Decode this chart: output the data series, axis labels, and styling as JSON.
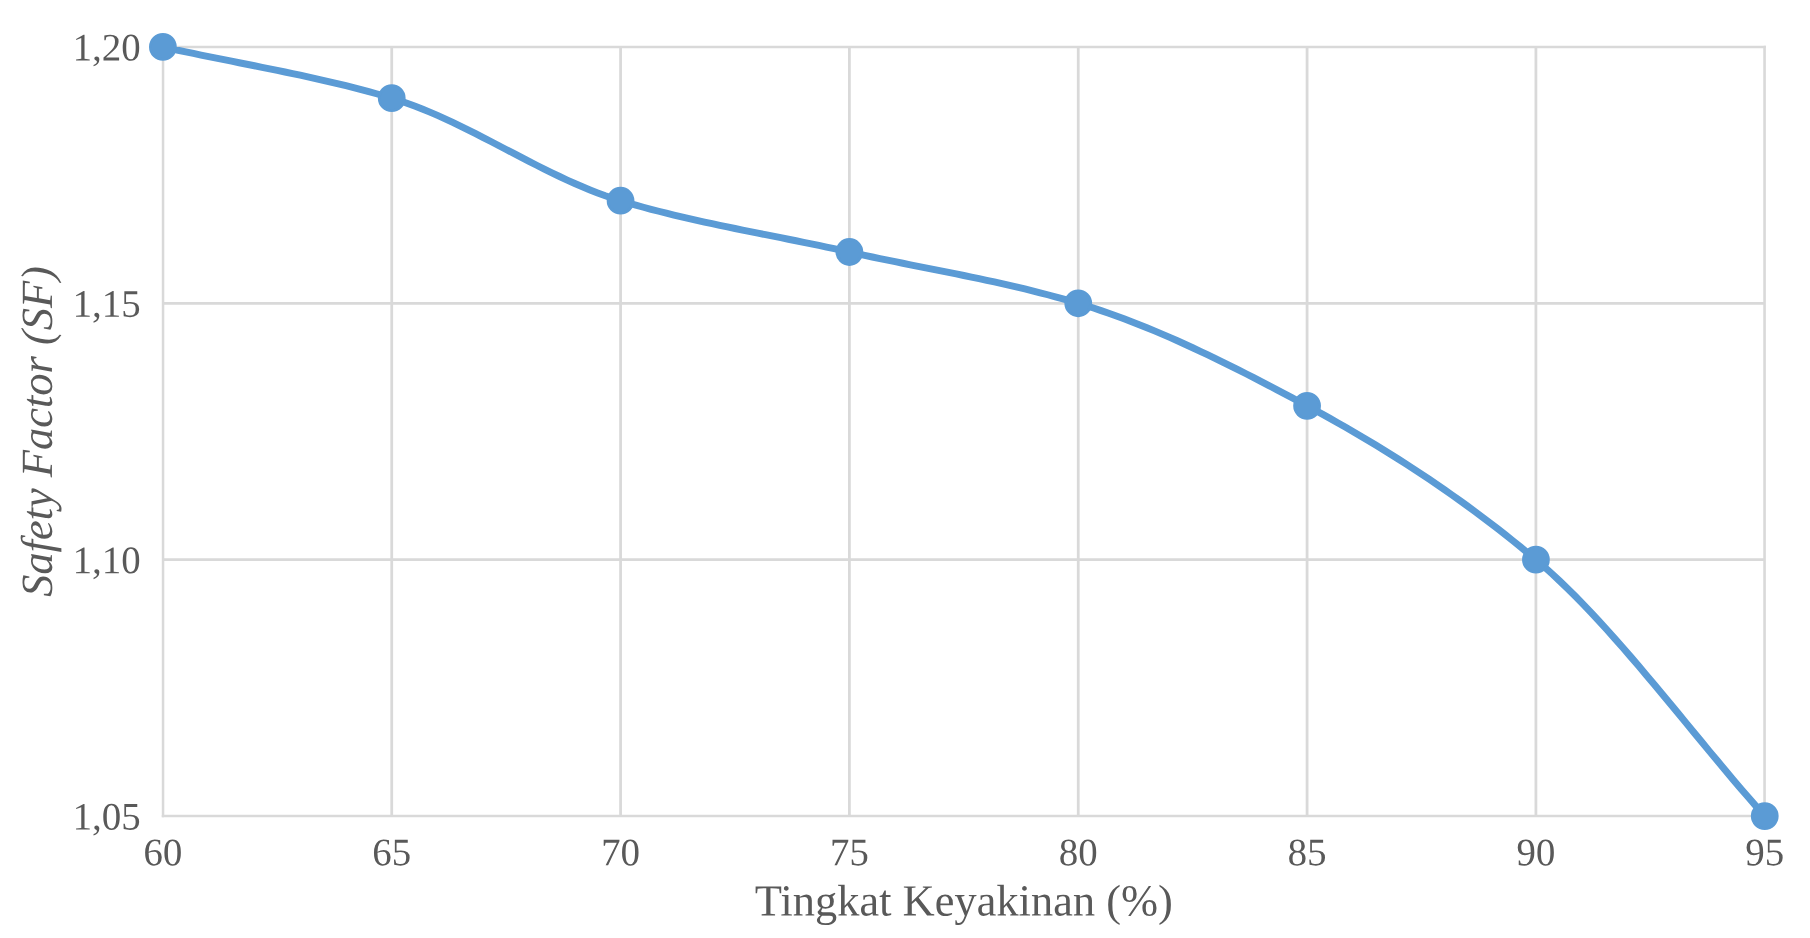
{
  "chart_data": {
    "type": "line",
    "xlabel": "Tingkat Keyakinan (%)",
    "ylabel": "Safety Factor (SF)",
    "x": [
      60,
      65,
      70,
      75,
      80,
      85,
      90,
      95
    ],
    "series": [
      {
        "color": "#5b9bd5",
        "values": [
          1.2,
          1.19,
          1.17,
          1.16,
          1.15,
          1.13,
          1.1,
          1.05
        ]
      }
    ],
    "xlim": [
      60,
      95
    ],
    "xticks": [
      60,
      65,
      70,
      75,
      80,
      85,
      90,
      95
    ],
    "ylim": [
      1.05,
      1.2
    ],
    "yticks": [
      {
        "value": 1.05,
        "label": "1,05"
      },
      {
        "value": 1.1,
        "label": "1,10"
      },
      {
        "value": 1.15,
        "label": "1,15"
      },
      {
        "value": 1.2,
        "label": "1,20"
      }
    ],
    "grid": true,
    "marker": "circle",
    "line_style": "solid"
  }
}
